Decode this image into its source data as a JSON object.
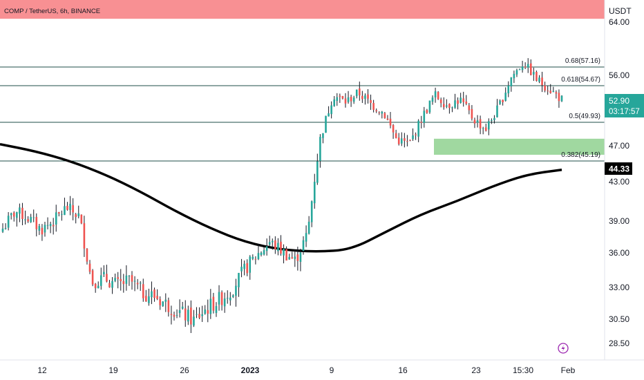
{
  "header": {
    "title": "COMP / TetherUS, 6h, BINANCE"
  },
  "colors": {
    "up": "#26a69a",
    "down": "#ef5350",
    "wick": "#131722",
    "ema": "#000000",
    "resistance_zone": "#f77c80",
    "support_zone": "#8fd18f",
    "fib_line": "#1e4d47",
    "price_tag": "#26a69a"
  },
  "price_axis": {
    "unit_label": "USDT",
    "labels": [
      "64.00",
      "56.00",
      "47.00",
      "43.00",
      "39.00",
      "36.00",
      "33.00",
      "30.50",
      "28.50"
    ],
    "current_price": "52.90",
    "countdown": "03:17:57",
    "ema_value": "44.33"
  },
  "time_axis": {
    "labels": [
      "12",
      "19",
      "26",
      "2023",
      "9",
      "16",
      "23",
      "15:30",
      "Feb"
    ]
  },
  "chart_data": {
    "type": "candlestick",
    "title": "COMP / TetherUS, 6h, BINANCE",
    "y_unit": "USDT",
    "ylim": [
      27.5,
      67
    ],
    "grid": false,
    "fib_levels": [
      {
        "label": "0.68(57.16)",
        "value": 57.16
      },
      {
        "label": "0.618(54.67)",
        "value": 54.67
      },
      {
        "label": "0.5(49.93)",
        "value": 49.93
      },
      {
        "label": "0.382(45.19)",
        "value": 45.19
      }
    ],
    "zones": [
      {
        "name": "resistance",
        "from": 64.5,
        "to": 68.0
      },
      {
        "name": "support",
        "from": 46.0,
        "to": 47.9
      }
    ],
    "ema_line": [
      47.2,
      46.4,
      45.3,
      43.8,
      42.0,
      40.0,
      38.3,
      37.0,
      36.3,
      36.1,
      36.3,
      38.0,
      39.7,
      41.0,
      42.5,
      43.8,
      44.33
    ],
    "candles_close": [
      38.3,
      40.0,
      39.3,
      38.2,
      39.0,
      40.4,
      39.5,
      33.5,
      33.8,
      33.2,
      33.6,
      32.6,
      32.3,
      31.6,
      31.0,
      30.4,
      31.3,
      32.0,
      32.8,
      34.5,
      35.8,
      37.0,
      36.2,
      35.3,
      37.8,
      48.0,
      53.5,
      52.6,
      53.8,
      52.3,
      51.2,
      47.8,
      47.2,
      50.6,
      53.5,
      52.2,
      52.9,
      50.5,
      49.1,
      51.8,
      55.7,
      57.9,
      55.5,
      54.3,
      52.9
    ]
  }
}
